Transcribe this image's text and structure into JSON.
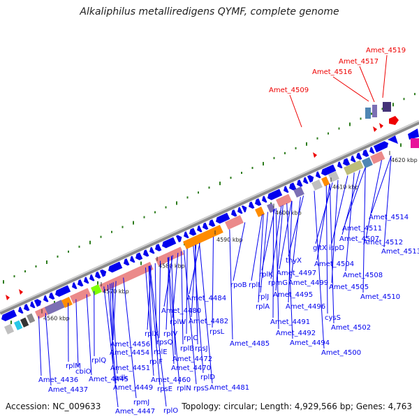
{
  "title": "Alkaliphilus metalliredigens QYMF, complete genome",
  "footer": {
    "accession_label": "Accession:",
    "accession": "NC_009633",
    "topology_label": "Topology:",
    "topology": "circular",
    "length_label": "Length:",
    "length": "4,929,566 bp",
    "genes_label": "Genes:",
    "genes": "4,763"
  },
  "colors": {
    "gene_arrow": "#0000ee",
    "label_line": "#0000ee",
    "highlight": "#ee0000",
    "backbone": "#888888",
    "tick_dot": "#2e7d1e"
  },
  "scale_ticks": [
    {
      "label": "4560 kbp"
    },
    {
      "label": "4570 kbp"
    },
    {
      "label": "4580 kbp"
    },
    {
      "label": "4590 kbp"
    },
    {
      "label": "4600 kbp"
    },
    {
      "label": "4610 kbp"
    },
    {
      "label": "4620 kbp"
    }
  ],
  "highlight_labels": [
    "Amet_4509",
    "Amet_4516",
    "Amet_4517",
    "Amet_4519"
  ],
  "gene_labels": [
    "Amet_4436",
    "Amet_4437",
    "rplM",
    "cbiO",
    "Amet_4445",
    "rplQ",
    "Amet_4451",
    "adk",
    "Amet_4449",
    "rpmJ",
    "Amet_4447",
    "Amet_4456",
    "Amet_4454",
    "rplF",
    "rpsE",
    "rplO",
    "rpsQ",
    "rplE",
    "Amet_4460",
    "rplN",
    "rplX",
    "rplV",
    "rplB",
    "rpsJ",
    "rplC",
    "Amet_4472",
    "Amet_4470",
    "rplD",
    "rpsS",
    "rplW",
    "Amet_4480",
    "Amet_4484",
    "Amet_4482",
    "rpsL",
    "Amet_4485",
    "Amet_4481",
    "rpoB",
    "rplL",
    "rplK",
    "rplJ",
    "rplA",
    "rpmG",
    "Amet_4497",
    "Amet_4495",
    "Amet_4496",
    "Amet_4499",
    "thyX",
    "Amet_4491",
    "Amet_4492",
    "Amet_4494",
    "Amet_4500",
    "gltX",
    "ispD",
    "Amet_4504",
    "Amet_4507",
    "Amet_4505",
    "Amet_4508",
    "cysS",
    "Amet_4502",
    "Amet_4510",
    "Amet_4511",
    "Amet_4512",
    "Amet_4513",
    "Amet_4514"
  ]
}
